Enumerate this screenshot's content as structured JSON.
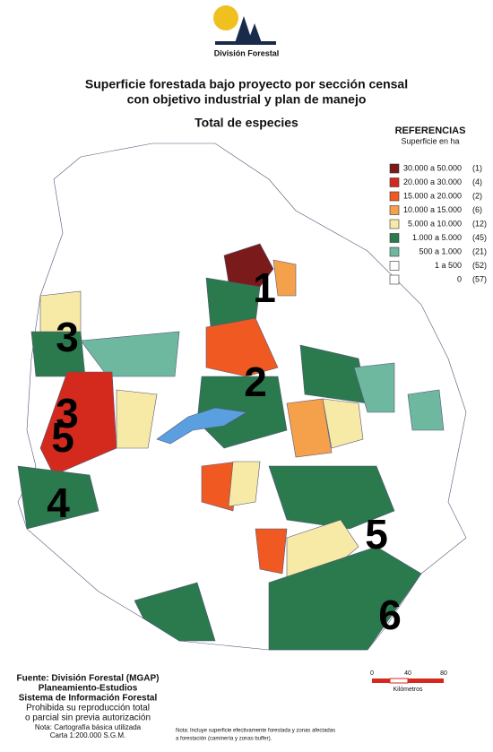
{
  "header": {
    "logo_text": "División Forestal",
    "title_lines": [
      "Superficie forestada bajo proyecto por sección censal",
      "con objetivo industrial y plan de manejo"
    ],
    "subtitle": "Total de especies"
  },
  "legend": {
    "title": "REFERENCIAS",
    "unit": "Superficie en ha",
    "items": [
      {
        "label": "30.000 a 50.000",
        "count": "(1)",
        "color": "#7a1a1a"
      },
      {
        "label": "20.000 a 30.000",
        "count": "(4)",
        "color": "#d42a1e"
      },
      {
        "label": "15.000 a 20.000",
        "count": "(2)",
        "color": "#f05a22"
      },
      {
        "label": "10.000 a 15.000",
        "count": "(6)",
        "color": "#f5a04a"
      },
      {
        "label": "5.000 a 10.000",
        "count": "(12)",
        "color": "#f7eaa6"
      },
      {
        "label": "1.000 a 5.000",
        "count": "(45)",
        "color": "#2a7a4e"
      },
      {
        "label": "500 a 1.000",
        "count": "(21)",
        "color": "#6fb8a0"
      },
      {
        "label": "1 a 500",
        "count": "(52)",
        "color": "#ffffff"
      },
      {
        "label": "0",
        "count": "(57)",
        "color": "#ffffff"
      }
    ]
  },
  "zone_labels": [
    "1",
    "2",
    "3",
    "3",
    "5",
    "4",
    "5",
    "6"
  ],
  "footer": {
    "bold_lines": [
      "Fuente: División Forestal (MGAP)",
      "Planeamiento-Estudios",
      "Sistema de Información Forestal"
    ],
    "lines": [
      "Prohibida su reproducción total",
      "o parcial sin previa autorización"
    ],
    "small_lines": [
      "Nota: Cartografía básica utilizada",
      "Carta 1:200.000 S.G.M."
    ]
  },
  "note": [
    "Nota: Incluye superficie efectivamente forestada y zonas afectadas",
    "a forestación (caminería y zonas buffer)."
  ],
  "scale": {
    "ticks": [
      "0",
      "40",
      "80"
    ],
    "unit": "Kilómetros"
  }
}
